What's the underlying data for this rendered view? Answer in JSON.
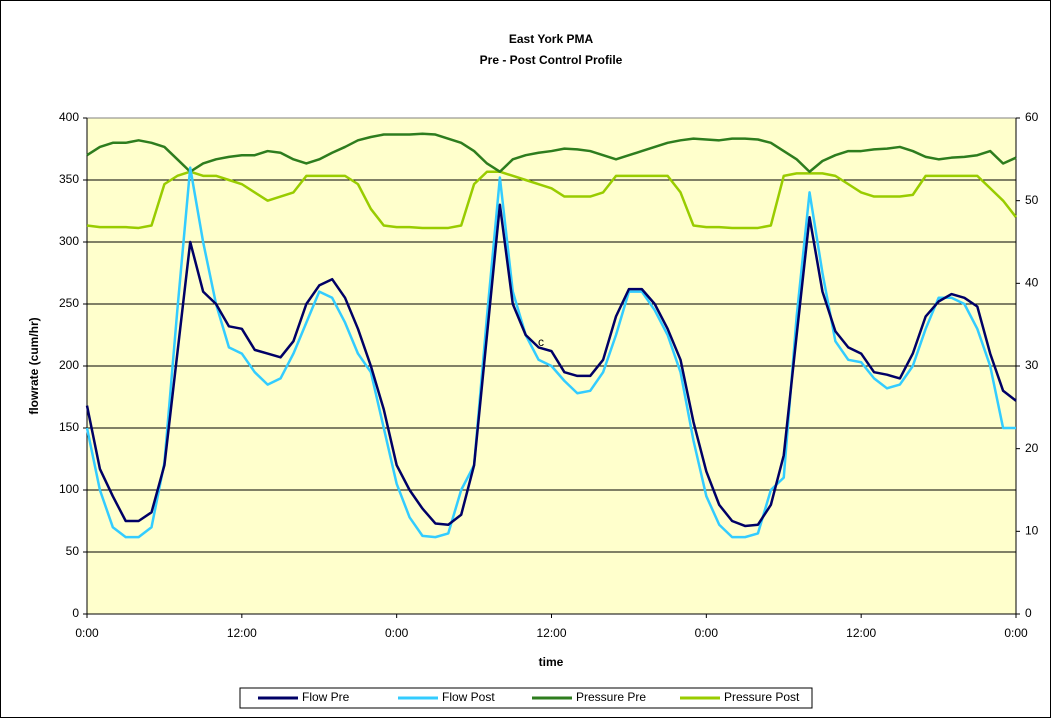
{
  "chart_data": {
    "type": "line",
    "title": "East York PMA",
    "subtitle": "Pre - Post Control Profile",
    "xlabel": "time",
    "ylabel": "flowrate (cum/hr)",
    "annotations": [
      "c"
    ],
    "x": [
      0,
      1,
      2,
      3,
      4,
      5,
      6,
      7,
      8,
      9,
      10,
      11,
      12,
      13,
      14,
      15,
      16,
      17,
      18,
      19,
      20,
      21,
      22,
      23,
      24,
      25,
      26,
      27,
      28,
      29,
      30,
      31,
      32,
      33,
      34,
      35,
      36,
      37,
      38,
      39,
      40,
      41,
      42,
      43,
      44,
      45,
      46,
      47,
      48,
      49,
      50,
      51,
      52,
      53,
      54,
      55,
      56,
      57,
      58,
      59,
      60,
      61,
      62,
      63,
      64,
      65,
      66,
      67,
      68,
      69,
      70,
      71,
      72
    ],
    "xlim": [
      0,
      72
    ],
    "xticks": [
      {
        "value": 0,
        "label": "0:00"
      },
      {
        "value": 12,
        "label": "12:00"
      },
      {
        "value": 24,
        "label": "0:00"
      },
      {
        "value": 36,
        "label": "12:00"
      },
      {
        "value": 48,
        "label": "0:00"
      },
      {
        "value": 60,
        "label": "12:00"
      },
      {
        "value": 72,
        "label": "0:00"
      }
    ],
    "ylim": [
      0,
      400
    ],
    "yticks": [
      0,
      50,
      100,
      150,
      200,
      250,
      300,
      350,
      400
    ],
    "y2lim": [
      0,
      60
    ],
    "y2ticks": [
      0,
      10,
      20,
      30,
      40,
      50,
      60
    ],
    "grid": true,
    "background": "#ffffcc",
    "legend": "bottom",
    "series": [
      {
        "name": "Flow Pre",
        "color": "#000066",
        "values": [
          168,
          117,
          95,
          75,
          75,
          82,
          120,
          210,
          300,
          260,
          250,
          232,
          230,
          213,
          210,
          207,
          220,
          250,
          265,
          270,
          255,
          230,
          200,
          165,
          120,
          100,
          85,
          73,
          72,
          80,
          120,
          225,
          330,
          250,
          225,
          215,
          212,
          195,
          192,
          192,
          205,
          240,
          262,
          262,
          250,
          230,
          205,
          155,
          115,
          88,
          75,
          71,
          72,
          88,
          128,
          225,
          320,
          260,
          228,
          215,
          210,
          195,
          193,
          190,
          210,
          240,
          252,
          258,
          255,
          248,
          210,
          180,
          172
        ]
      },
      {
        "name": "Flow Post",
        "color": "#33ccff",
        "values": [
          150,
          100,
          70,
          62,
          62,
          70,
          122,
          245,
          360,
          300,
          250,
          215,
          210,
          195,
          185,
          190,
          210,
          235,
          260,
          255,
          235,
          210,
          195,
          150,
          105,
          78,
          63,
          62,
          65,
          100,
          120,
          240,
          352,
          260,
          225,
          205,
          200,
          188,
          178,
          180,
          195,
          225,
          260,
          260,
          245,
          225,
          195,
          140,
          95,
          72,
          62,
          62,
          65,
          100,
          110,
          240,
          340,
          275,
          220,
          205,
          203,
          190,
          182,
          185,
          200,
          230,
          255,
          255,
          250,
          230,
          200,
          150,
          150
        ]
      },
      {
        "name": "Pressure Pre",
        "color": "#2e7d1e",
        "axis": "y2",
        "values": [
          55.5,
          56.5,
          57,
          57,
          57.3,
          57,
          56.5,
          55,
          53.5,
          54.5,
          55,
          55.3,
          55.5,
          55.5,
          56,
          55.8,
          55,
          54.5,
          55,
          55.8,
          56.5,
          57.3,
          57.7,
          58,
          58,
          58,
          58.1,
          58,
          57.5,
          57,
          56,
          54.5,
          53.5,
          55,
          55.5,
          55.8,
          56,
          56.3,
          56.2,
          56,
          55.5,
          55,
          55.5,
          56,
          56.5,
          57,
          57.3,
          57.5,
          57.4,
          57.3,
          57.5,
          57.5,
          57.4,
          57,
          56,
          55,
          53.5,
          54.8,
          55.5,
          56,
          56,
          56.2,
          56.3,
          56.5,
          56,
          55.3,
          55,
          55.2,
          55.3,
          55.5,
          56,
          54.5,
          55.2
        ]
      },
      {
        "name": "Pressure Post",
        "color": "#99cc00",
        "axis": "y2",
        "values": [
          47,
          46.8,
          46.8,
          46.8,
          46.7,
          47,
          52,
          53,
          53.5,
          53,
          53,
          52.5,
          52,
          51,
          50,
          50.5,
          51,
          53,
          53,
          53,
          53,
          52,
          49,
          47,
          46.8,
          46.8,
          46.7,
          46.7,
          46.7,
          47,
          52,
          53.5,
          53.5,
          53,
          52.5,
          52,
          51.5,
          50.5,
          50.5,
          50.5,
          51,
          53,
          53,
          53,
          53,
          53,
          51,
          47,
          46.8,
          46.8,
          46.7,
          46.7,
          46.7,
          47,
          53,
          53.3,
          53.3,
          53.3,
          53,
          52,
          51,
          50.5,
          50.5,
          50.5,
          50.7,
          53,
          53,
          53,
          53,
          53,
          51.5,
          50,
          48
        ]
      }
    ]
  }
}
